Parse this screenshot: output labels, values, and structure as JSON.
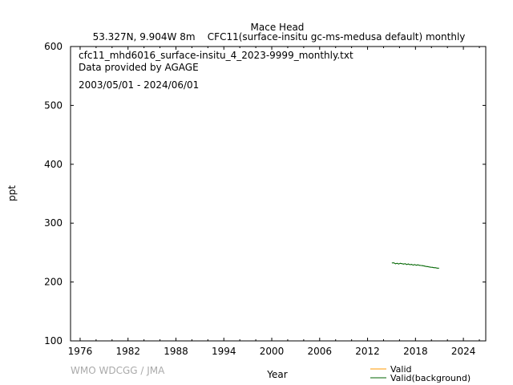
{
  "chart_data": {
    "type": "line",
    "title": "Mace Head",
    "subtitle": "53.327N, 9.904W 8m    CFC11(surface-insitu gc-ms-medusa default) monthly",
    "xlabel": "Year",
    "ylabel": "ppt",
    "xlim": [
      1974.8,
      2026.8
    ],
    "ylim": [
      100,
      600
    ],
    "x_ticks": [
      1976,
      1982,
      1988,
      1994,
      2000,
      2006,
      2012,
      2018,
      2024
    ],
    "y_ticks": [
      100,
      200,
      300,
      400,
      500,
      600
    ],
    "grid": false,
    "legend_position": "bottom-right",
    "annotations": [
      "cfc11_mhd6016_surface-insitu_4_2023-9999_monthly.txt",
      "Data provided by AGAGE",
      "2003/05/01 - 2024/06/01"
    ],
    "series": [
      {
        "name": "Valid",
        "color": "#ff9900",
        "x": [],
        "y": []
      },
      {
        "name": "Valid(background)",
        "color": "#006600",
        "x": [
          2015.1,
          2015.3,
          2015.5,
          2015.7,
          2015.9,
          2016.1,
          2016.3,
          2016.5,
          2016.7,
          2016.9,
          2017.1,
          2017.3,
          2017.5,
          2017.7,
          2017.9,
          2018.1,
          2018.3,
          2018.5,
          2018.9,
          2019.1,
          2019.3,
          2019.5,
          2019.7,
          2019.9,
          2020.1,
          2020.3,
          2020.5,
          2020.7,
          2020.9
        ],
        "y": [
          232.4,
          232.6,
          231.0,
          231.8,
          230.6,
          231.8,
          231.2,
          230.5,
          231.0,
          229.8,
          230.6,
          229.4,
          230.0,
          228.8,
          229.6,
          228.6,
          229.2,
          228.3,
          227.8,
          227.2,
          226.6,
          226.2,
          225.6,
          225.2,
          224.9,
          224.4,
          224.2,
          223.7,
          223.5
        ]
      }
    ]
  },
  "footer": {
    "credit": "WMO WDCGG / JMA"
  }
}
